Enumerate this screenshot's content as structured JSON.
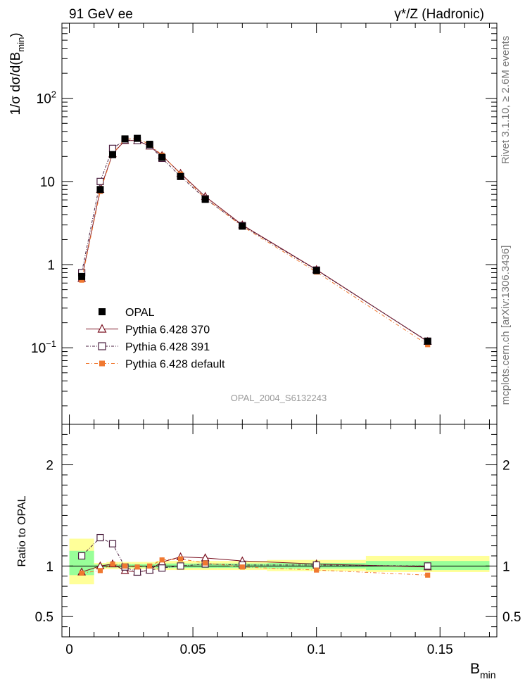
{
  "header": {
    "left": "91 GeV ee",
    "right": "γ*/Z (Hadronic)"
  },
  "side_labels": {
    "rivet": "Rivet 3.1.10, ≥ 2.6M events",
    "mcplots": "mcplots.cern.ch [arXiv:1306.3436]"
  },
  "analysis_label": "OPAL_2004_S6132243",
  "chart_data": [
    {
      "type": "scatter",
      "name": "main-panel",
      "ylabel": "1/σ dσ/d(B_min)",
      "y_scale": "log",
      "xlim": [
        -0.003,
        0.173
      ],
      "ylim": [
        0.012,
        800
      ],
      "y_ticks": [
        {
          "value": 100,
          "label": "10",
          "sup": "2"
        },
        {
          "value": 10,
          "label": "10",
          "sup": ""
        },
        {
          "value": 1,
          "label": "1",
          "sup": ""
        },
        {
          "value": 0.1,
          "label": "10",
          "sup": "−1"
        }
      ],
      "legend_position": "bottom-left",
      "series": [
        {
          "name": "OPAL",
          "style": "data",
          "color": "#000000",
          "x": [
            0.005,
            0.0125,
            0.0175,
            0.0225,
            0.0275,
            0.0325,
            0.0375,
            0.045,
            0.055,
            0.07,
            0.1,
            0.145
          ],
          "y": [
            0.72,
            8.0,
            21.0,
            32.5,
            33.0,
            28.0,
            19.5,
            11.5,
            6.1,
            2.9,
            0.85,
            0.12
          ]
        },
        {
          "name": "Pythia 6.428 370",
          "style": "triangle",
          "color": "#7a1020",
          "x": [
            0.005,
            0.0125,
            0.0175,
            0.0225,
            0.0275,
            0.0325,
            0.0375,
            0.045,
            0.055,
            0.07,
            0.1,
            0.145
          ],
          "y": [
            0.68,
            8.0,
            21.5,
            31.0,
            31.0,
            26.6,
            20.5,
            12.5,
            6.6,
            3.0,
            0.87,
            0.119
          ]
        },
        {
          "name": "Pythia 6.428 391",
          "style": "square-open",
          "color": "#4b2040",
          "x": [
            0.005,
            0.0125,
            0.0175,
            0.0225,
            0.0275,
            0.0325,
            0.0375,
            0.045,
            0.055,
            0.07,
            0.1,
            0.145
          ],
          "y": [
            0.8,
            10.0,
            25.0,
            31.5,
            31.0,
            27.0,
            19.0,
            11.5,
            6.2,
            2.95,
            0.86,
            0.12
          ]
        },
        {
          "name": "Pythia 6.428 default",
          "style": "square-filled",
          "color": "#f07830",
          "x": [
            0.005,
            0.0125,
            0.0175,
            0.0225,
            0.0275,
            0.0325,
            0.0375,
            0.045,
            0.055,
            0.07,
            0.1,
            0.145
          ],
          "y": [
            0.65,
            7.6,
            21.4,
            32.5,
            32.5,
            28.0,
            20.7,
            12.3,
            6.3,
            2.88,
            0.815,
            0.109
          ]
        }
      ]
    },
    {
      "type": "scatter",
      "name": "ratio-panel",
      "ylabel": "Ratio to OPAL",
      "xlabel": "B_min",
      "xlim": [
        -0.003,
        0.173
      ],
      "ylim": [
        0.3,
        2.4
      ],
      "y_ticks": [
        {
          "value": 2,
          "label": "2"
        },
        {
          "value": 1,
          "label": "1"
        },
        {
          "value": 0.5,
          "label": "0.5"
        }
      ],
      "x_ticks": [
        {
          "value": 0,
          "label": "0"
        },
        {
          "value": 0.05,
          "label": "0.05"
        },
        {
          "value": 0.1,
          "label": "0.1"
        },
        {
          "value": 0.15,
          "label": "0.15"
        }
      ],
      "bands": [
        {
          "x0": 0.0,
          "x1": 0.01,
          "yellow": [
            0.82,
            1.27
          ],
          "green": [
            0.91,
            1.15
          ]
        },
        {
          "x0": 0.01,
          "x1": 0.015,
          "yellow": [
            0.97,
            1.03
          ],
          "green": [
            0.985,
            1.015
          ]
        },
        {
          "x0": 0.015,
          "x1": 0.02,
          "yellow": [
            0.97,
            1.04
          ],
          "green": [
            0.985,
            1.02
          ]
        },
        {
          "x0": 0.02,
          "x1": 0.025,
          "yellow": [
            0.97,
            1.04
          ],
          "green": [
            0.985,
            1.02
          ]
        },
        {
          "x0": 0.025,
          "x1": 0.03,
          "yellow": [
            0.97,
            1.04
          ],
          "green": [
            0.985,
            1.02
          ]
        },
        {
          "x0": 0.03,
          "x1": 0.035,
          "yellow": [
            0.97,
            1.04
          ],
          "green": [
            0.985,
            1.02
          ]
        },
        {
          "x0": 0.035,
          "x1": 0.04,
          "yellow": [
            0.96,
            1.05
          ],
          "green": [
            0.98,
            1.025
          ]
        },
        {
          "x0": 0.04,
          "x1": 0.05,
          "yellow": [
            0.96,
            1.05
          ],
          "green": [
            0.98,
            1.025
          ]
        },
        {
          "x0": 0.05,
          "x1": 0.06,
          "yellow": [
            0.96,
            1.05
          ],
          "green": [
            0.98,
            1.025
          ]
        },
        {
          "x0": 0.06,
          "x1": 0.08,
          "yellow": [
            0.96,
            1.05
          ],
          "green": [
            0.98,
            1.025
          ]
        },
        {
          "x0": 0.08,
          "x1": 0.12,
          "yellow": [
            0.95,
            1.06
          ],
          "green": [
            0.975,
            1.03
          ]
        },
        {
          "x0": 0.12,
          "x1": 0.17,
          "yellow": [
            0.94,
            1.1
          ],
          "green": [
            0.96,
            1.05
          ]
        }
      ],
      "series": [
        {
          "name": "Pythia 6.428 370",
          "style": "triangle",
          "color": "#7a1020",
          "x": [
            0.005,
            0.0125,
            0.0175,
            0.0225,
            0.0275,
            0.0325,
            0.0375,
            0.045,
            0.055,
            0.07,
            0.1,
            0.145
          ],
          "y": [
            0.94,
            1.0,
            1.02,
            0.955,
            0.94,
            0.96,
            1.04,
            1.09,
            1.08,
            1.05,
            1.02,
            0.99
          ]
        },
        {
          "name": "Pythia 6.428 391",
          "style": "square-open",
          "color": "#4b2040",
          "x": [
            0.005,
            0.0125,
            0.0175,
            0.0225,
            0.0275,
            0.0325,
            0.0375,
            0.045,
            0.055,
            0.07,
            0.1,
            0.145
          ],
          "y": [
            1.1,
            1.28,
            1.22,
            0.99,
            0.94,
            0.96,
            0.98,
            1.0,
            1.02,
            1.01,
            1.01,
            1.0
          ]
        },
        {
          "name": "Pythia 6.428 default",
          "style": "square-filled",
          "color": "#f07830",
          "x": [
            0.005,
            0.0125,
            0.0175,
            0.0225,
            0.0275,
            0.0325,
            0.0375,
            0.045,
            0.055,
            0.07,
            0.1,
            0.145
          ],
          "y": [
            0.93,
            0.955,
            1.02,
            1.0,
            0.99,
            1.0,
            1.06,
            1.07,
            1.03,
            0.99,
            0.96,
            0.91
          ]
        }
      ]
    }
  ]
}
